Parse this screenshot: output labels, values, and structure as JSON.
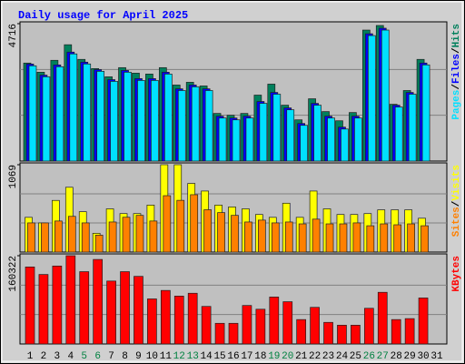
{
  "title": "Daily usage for April 2025",
  "legend_separator": "/",
  "chart_data": [
    {
      "type": "bar",
      "ylim": [
        0,
        4716
      ],
      "yticks": [
        4716
      ],
      "series": [
        {
          "name": "Hits",
          "color": "#00805c",
          "values": [
            3364,
            3050,
            3458,
            3993,
            3490,
            3175,
            2892,
            3207,
            3018,
            2987,
            3207,
            2610,
            2704,
            2578,
            1635,
            1572,
            1635,
            2264,
            2641,
            1918,
            1415,
            2138,
            1698,
            1383,
            1666,
            4496,
            4653,
            1949,
            2421,
            3490,
            null
          ]
        },
        {
          "name": "Files",
          "color": "#0000ff",
          "values": [
            3330,
            2950,
            3300,
            3740,
            3395,
            3140,
            2795,
            3110,
            2830,
            2830,
            3050,
            2480,
            2610,
            2480,
            1540,
            1478,
            1540,
            2045,
            2355,
            1825,
            1290,
            1980,
            1540,
            1165,
            1540,
            4370,
            4560,
            1918,
            2355,
            3365,
            null
          ]
        },
        {
          "name": "Pages",
          "color": "#00e0ff",
          "values": [
            3270,
            2892,
            3238,
            3678,
            3333,
            3081,
            2735,
            3050,
            2767,
            2767,
            2987,
            2421,
            2547,
            2421,
            1478,
            1415,
            1478,
            1981,
            2295,
            1761,
            1226,
            1918,
            1478,
            1100,
            1478,
            4307,
            4496,
            1855,
            2295,
            3301,
            null
          ]
        }
      ]
    },
    {
      "type": "bar",
      "ylim": [
        0,
        1069
      ],
      "yticks": [
        1069
      ],
      "series": [
        {
          "name": "Visits",
          "color": "#ffff00",
          "values": [
            425,
            357,
            632,
            793,
            494,
            230,
            529,
            471,
            471,
            575,
            1069,
            1069,
            840,
            747,
            575,
            552,
            529,
            460,
            425,
            598,
            425,
            747,
            529,
            460,
            460,
            471,
            517,
            517,
            517,
            414,
            null
          ]
        },
        {
          "name": "Sites",
          "color": "#ff8000",
          "values": [
            357,
            357,
            380,
            437,
            357,
            207,
            368,
            426,
            449,
            380,
            690,
            633,
            702,
            518,
            483,
            449,
            368,
            391,
            357,
            368,
            345,
            403,
            345,
            345,
            357,
            322,
            345,
            334,
            345,
            322,
            null
          ]
        }
      ]
    },
    {
      "type": "bar",
      "ylim": [
        0,
        160322
      ],
      "yticks": [
        160322
      ],
      "categories": [
        "1",
        "2",
        "3",
        "4",
        "5",
        "6",
        "7",
        "8",
        "9",
        "10",
        "11",
        "12",
        "13",
        "14",
        "15",
        "16",
        "17",
        "18",
        "19",
        "20",
        "21",
        "22",
        "23",
        "24",
        "25",
        "26",
        "27",
        "28",
        "29",
        "30",
        "31"
      ],
      "highlight_categories": [
        "5",
        "6",
        "12",
        "13",
        "19",
        "20",
        "26",
        "27"
      ],
      "highlight_color": "#008040",
      "series": [
        {
          "name": "KBytes",
          "color": "#ff0000",
          "values": [
            139892,
            126244,
            141598,
            160322,
            131362,
            153540,
            114302,
            131362,
            122832,
            81888,
            97242,
            87006,
            92124,
            68240,
            37532,
            37532,
            69946,
            63122,
            85300,
            76770,
            44356,
            66534,
            39238,
            34120,
            34120,
            64828,
            93830,
            44356,
            46062,
            83594,
            null
          ]
        }
      ]
    }
  ]
}
